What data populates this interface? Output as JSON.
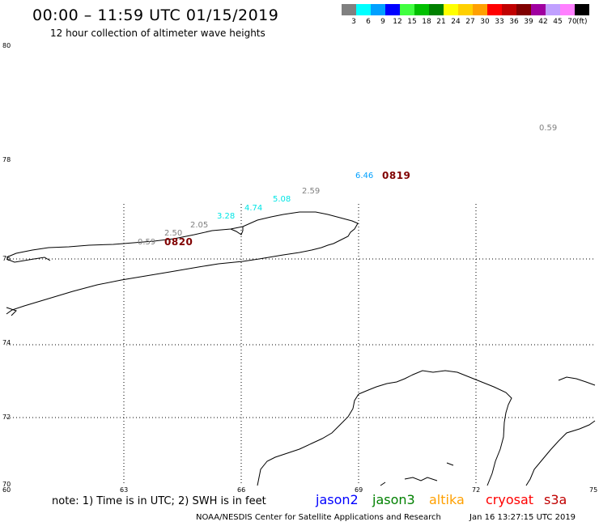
{
  "header": {
    "title": "00:00 – 11:59 UTC 01/15/2019",
    "subtitle": "12 hour collection of altimeter wave heights"
  },
  "color_scale": {
    "unit": "(ft)",
    "bins": [
      {
        "label": "3",
        "color": "#808080"
      },
      {
        "label": "6",
        "color": "#00ffff"
      },
      {
        "label": "9",
        "color": "#00a0ff"
      },
      {
        "label": "12",
        "color": "#0000ff"
      },
      {
        "label": "15",
        "color": "#40ff40"
      },
      {
        "label": "18",
        "color": "#00c000"
      },
      {
        "label": "21",
        "color": "#008000"
      },
      {
        "label": "24",
        "color": "#ffff00"
      },
      {
        "label": "27",
        "color": "#ffd000"
      },
      {
        "label": "30",
        "color": "#ffa000"
      },
      {
        "label": "33",
        "color": "#ff0000"
      },
      {
        "label": "36",
        "color": "#c00000"
      },
      {
        "label": "39",
        "color": "#800000"
      },
      {
        "label": "42",
        "color": "#a000a0"
      },
      {
        "label": "45",
        "color": "#c0a0ff"
      },
      {
        "label": "70",
        "color": "#ff80ff"
      },
      {
        "label": "",
        "color": "#000000"
      }
    ]
  },
  "map": {
    "lat_labels": [
      "80",
      "78",
      "76",
      "74",
      "72",
      "70"
    ],
    "lon_labels": [
      "60",
      "63",
      "66",
      "69",
      "72",
      "75"
    ],
    "wave_heights": [
      {
        "text": "0.59",
        "color": "#808080"
      },
      {
        "text": "2.50",
        "color": "#808080"
      },
      {
        "text": "2.05",
        "color": "#808080"
      },
      {
        "text": "3.28",
        "color": "#00e5e5"
      },
      {
        "text": "4.74",
        "color": "#00e5e5"
      },
      {
        "text": "5.08",
        "color": "#00e5e5"
      },
      {
        "text": "2.59",
        "color": "#808080"
      },
      {
        "text": "6.46",
        "color": "#00a0ff"
      },
      {
        "text": "0.59",
        "color": "#808080"
      }
    ],
    "pass_times": [
      {
        "text": "0820",
        "color": "#800000"
      },
      {
        "text": "0819",
        "color": "#800000"
      }
    ]
  },
  "footer": {
    "note": "note: 1) Time is in UTC; 2) SWH is in feet",
    "satellites": [
      {
        "name": "jason2",
        "color": "#0000ff"
      },
      {
        "name": "jason3",
        "color": "#008000"
      },
      {
        "name": "altika",
        "color": "#ffa000"
      },
      {
        "name": "cryosat",
        "color": "#ff0000"
      },
      {
        "name": "s3a",
        "color": "#c00000"
      }
    ],
    "credit": "NOAA/NESDIS Center for Satellite Applications and Research",
    "timestamp": "Jan 16 13:27:15 UTC 2019"
  }
}
